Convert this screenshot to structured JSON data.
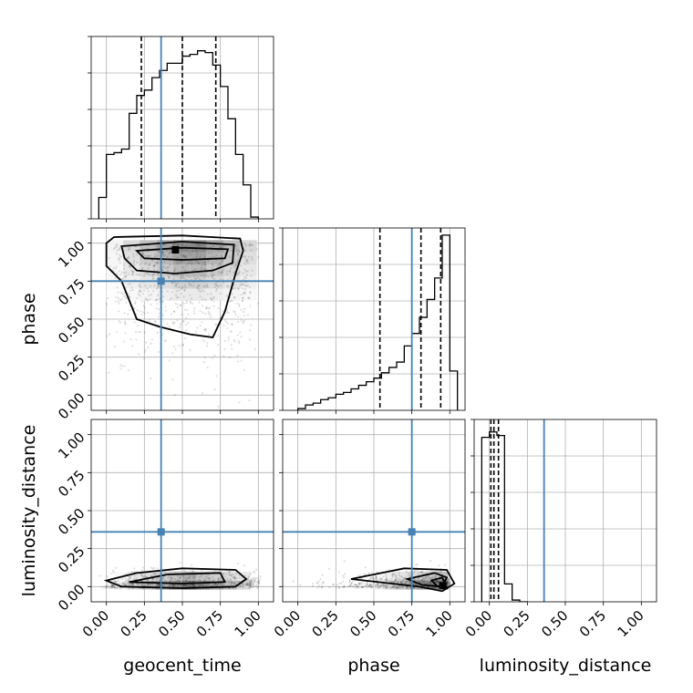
{
  "chart_data": {
    "type": "corner",
    "parameters": [
      "geocent_time",
      "phase",
      "luminosity_distance"
    ],
    "axis_labels": {
      "geocent_time": "geocent_time",
      "phase": "phase",
      "luminosity_distance": "luminosity_distance"
    },
    "range": [
      -0.1,
      1.1
    ],
    "tick_values": [
      0.0,
      0.25,
      0.5,
      0.75,
      1.0
    ],
    "tick_labels": [
      "0.00",
      "0.25",
      "0.50",
      "0.75",
      "1.00"
    ],
    "grid": true,
    "truths": {
      "geocent_time": 0.36,
      "phase": 0.75,
      "luminosity_distance": 0.36
    },
    "truth_color": "#4682b4",
    "quantiles": {
      "geocent_time": [
        0.23,
        0.5,
        0.72
      ],
      "phase": [
        0.54,
        0.81,
        0.94
      ],
      "luminosity_distance": [
        0.01,
        0.03,
        0.06
      ]
    },
    "histograms": {
      "geocent_time": {
        "bin_edges": [
          -0.05,
          0.0,
          0.05,
          0.1,
          0.15,
          0.2,
          0.25,
          0.3,
          0.35,
          0.4,
          0.45,
          0.5,
          0.55,
          0.6,
          0.65,
          0.7,
          0.75,
          0.8,
          0.85,
          0.9,
          0.95,
          1.0
        ],
        "counts": [
          0.12,
          0.36,
          0.37,
          0.39,
          0.59,
          0.69,
          0.72,
          0.79,
          0.83,
          0.87,
          0.87,
          0.91,
          0.92,
          0.94,
          0.93,
          0.86,
          0.74,
          0.56,
          0.36,
          0.19,
          0.01
        ]
      },
      "phase": {
        "bin_edges": [
          0.0,
          0.05,
          0.1,
          0.15,
          0.2,
          0.25,
          0.3,
          0.35,
          0.4,
          0.45,
          0.5,
          0.55,
          0.6,
          0.65,
          0.7,
          0.75,
          0.8,
          0.85,
          0.9,
          0.95,
          1.0,
          1.05
        ],
        "counts": [
          0.01,
          0.03,
          0.04,
          0.06,
          0.07,
          0.09,
          0.1,
          0.12,
          0.14,
          0.16,
          0.18,
          0.21,
          0.24,
          0.27,
          0.36,
          0.43,
          0.52,
          0.62,
          0.74,
          0.98,
          0.22
        ]
      },
      "luminosity_distance": {
        "bin_edges": [
          -0.05,
          0.0,
          0.05,
          0.1,
          0.15,
          0.2,
          0.25
        ],
        "counts": [
          0.92,
          0.95,
          0.93,
          0.1,
          0.01,
          0.0
        ]
      }
    }
  }
}
